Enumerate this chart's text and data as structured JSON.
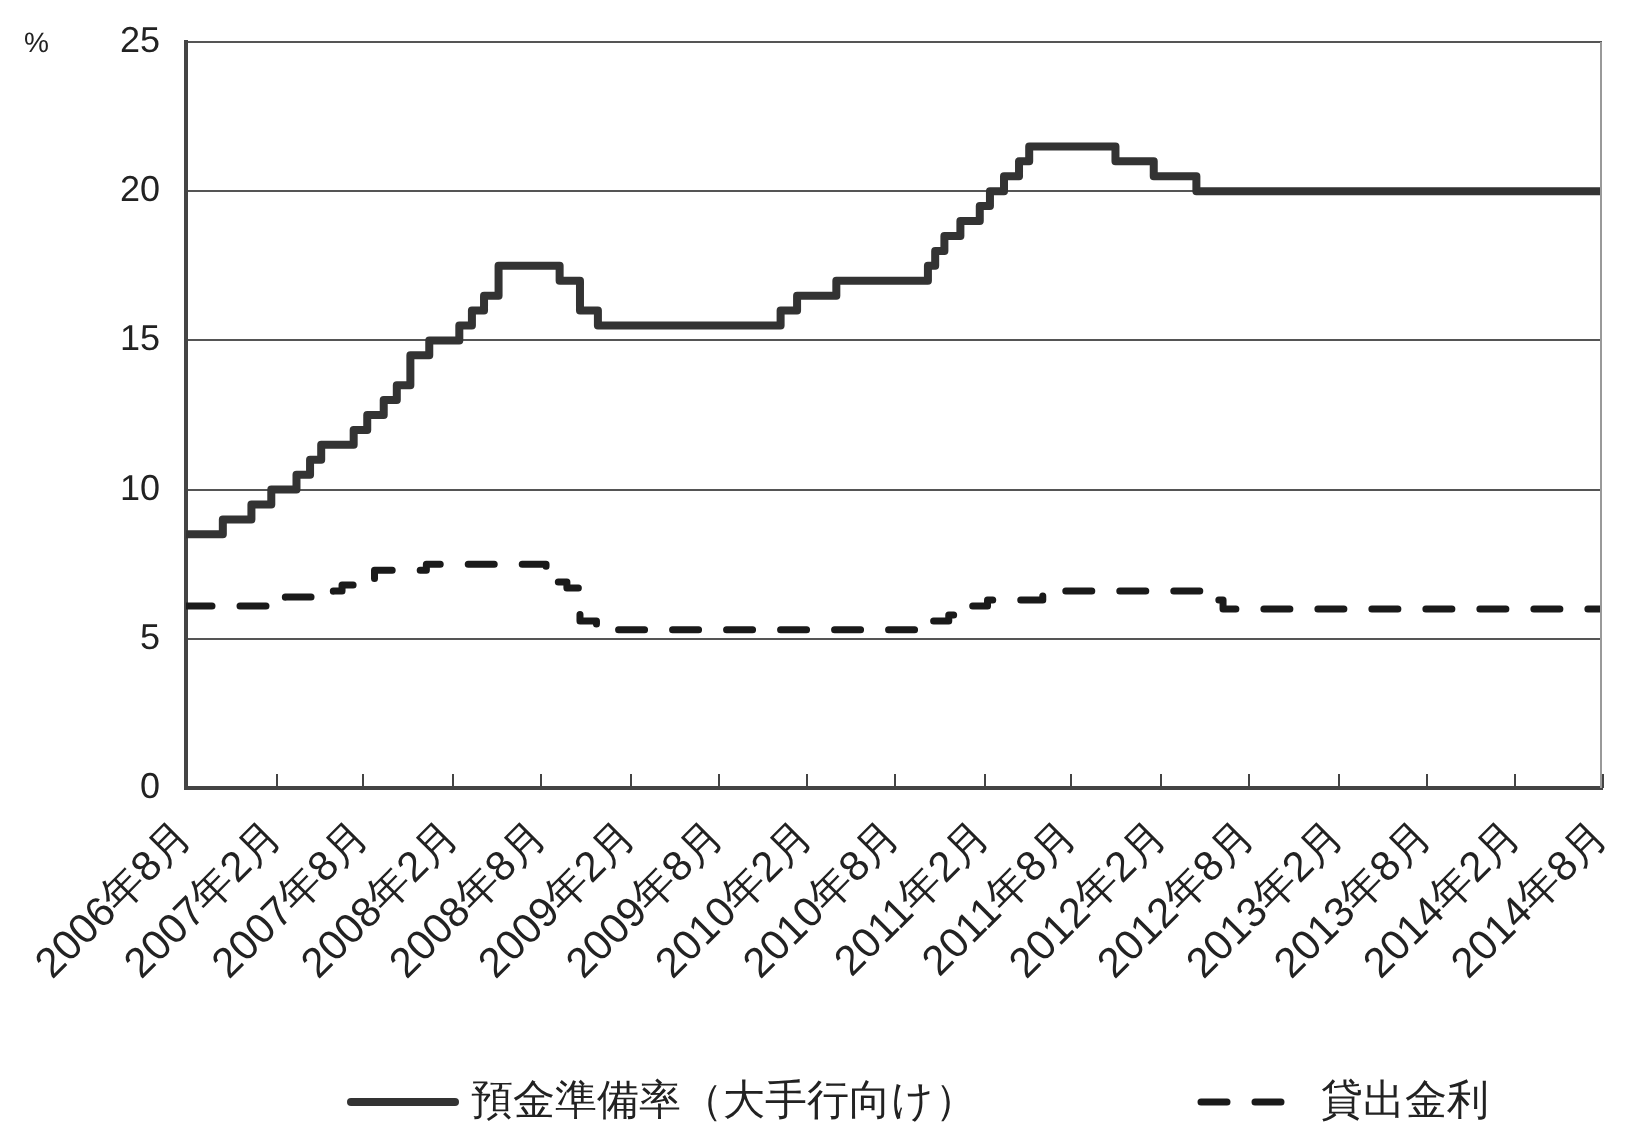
{
  "chart_data": {
    "type": "step",
    "ylabel": "%",
    "xlim": [
      "2006-08",
      "2014-08"
    ],
    "xticks": [
      {
        "value": "2006-08",
        "label": "2006年8月"
      },
      {
        "value": "2007-02",
        "label": "2007年2月"
      },
      {
        "value": "2007-08",
        "label": "2007年8月"
      },
      {
        "value": "2008-02",
        "label": "2008年2月"
      },
      {
        "value": "2008-08",
        "label": "2008年8月"
      },
      {
        "value": "2009-02",
        "label": "2009年2月"
      },
      {
        "value": "2009-08",
        "label": "2009年8月"
      },
      {
        "value": "2010-02",
        "label": "2010年2月"
      },
      {
        "value": "2010-08",
        "label": "2010年8月"
      },
      {
        "value": "2011-02",
        "label": "2011年2月"
      },
      {
        "value": "2011-08",
        "label": "2011年8月"
      },
      {
        "value": "2012-02",
        "label": "2012年2月"
      },
      {
        "value": "2012-08",
        "label": "2012年8月"
      },
      {
        "value": "2013-02",
        "label": "2013年2月"
      },
      {
        "value": "2013-08",
        "label": "2013年8月"
      },
      {
        "value": "2014-02",
        "label": "2014年2月"
      },
      {
        "value": "2014-08",
        "label": "2014年8月"
      }
    ],
    "ylim": [
      0,
      25
    ],
    "yticks": [
      0,
      5,
      10,
      15,
      20,
      25
    ],
    "grid": "y",
    "legend": "bottom",
    "series": [
      {
        "name": "預金準備率（大手行向け）",
        "color": "#333333",
        "line_style": "solid",
        "x": [
          "2006-08",
          "2006-10-16",
          "2006-12-14",
          "2007-01-24",
          "2007-03-17",
          "2007-04-14",
          "2007-05-07",
          "2007-07-13",
          "2007-08-10",
          "2007-09-13",
          "2007-10-10",
          "2007-11-07",
          "2007-12-16",
          "2008-02-16",
          "2008-03-13",
          "2008-04-07",
          "2008-05-07",
          "2008-09-10",
          "2008-10-22",
          "2008-11-28",
          "2009-12-10",
          "2010-01-13",
          "2010-04-04",
          "2010-10-10",
          "2010-10-25",
          "2010-11-13",
          "2010-12-16",
          "2011-01-25",
          "2011-02-15",
          "2011-03-16",
          "2011-04-16",
          "2011-05-07",
          "2011-11-01",
          "2012-01-19",
          "2012-04-16",
          "2014-08"
        ],
        "values": [
          8.5,
          9,
          9.5,
          10,
          10.5,
          11,
          11.5,
          12,
          12.5,
          13,
          13.5,
          14.5,
          15,
          15.5,
          16,
          16.5,
          17.5,
          17,
          16,
          15.5,
          16,
          16.5,
          17,
          17.5,
          18,
          18.5,
          19,
          19.5,
          20,
          20.5,
          21,
          21.5,
          21,
          20.5,
          20,
          20
        ]
      },
      {
        "name": "貸出金利",
        "color": "#1a1a1a",
        "line_style": "dashed",
        "x": [
          "2006-08",
          "2007-02-22",
          "2007-06-01",
          "2007-06-19",
          "2007-08-01",
          "2007-08-25",
          "2007-12-10",
          "2008-08-13",
          "2008-09-04",
          "2008-09-25",
          "2008-10-22",
          "2008-11-25",
          "2010-09-16",
          "2010-11-22",
          "2011-01-10",
          "2011-02-10",
          "2011-06-04",
          "2012-05-20",
          "2012-06-10",
          "2014-08"
        ],
        "values": [
          6.1,
          6.4,
          6.6,
          6.8,
          7.0,
          7.3,
          7.5,
          7.2,
          6.9,
          6.7,
          5.6,
          5.3,
          5.6,
          5.8,
          6.1,
          6.3,
          6.6,
          6.3,
          6.0,
          6.0
        ]
      }
    ]
  }
}
